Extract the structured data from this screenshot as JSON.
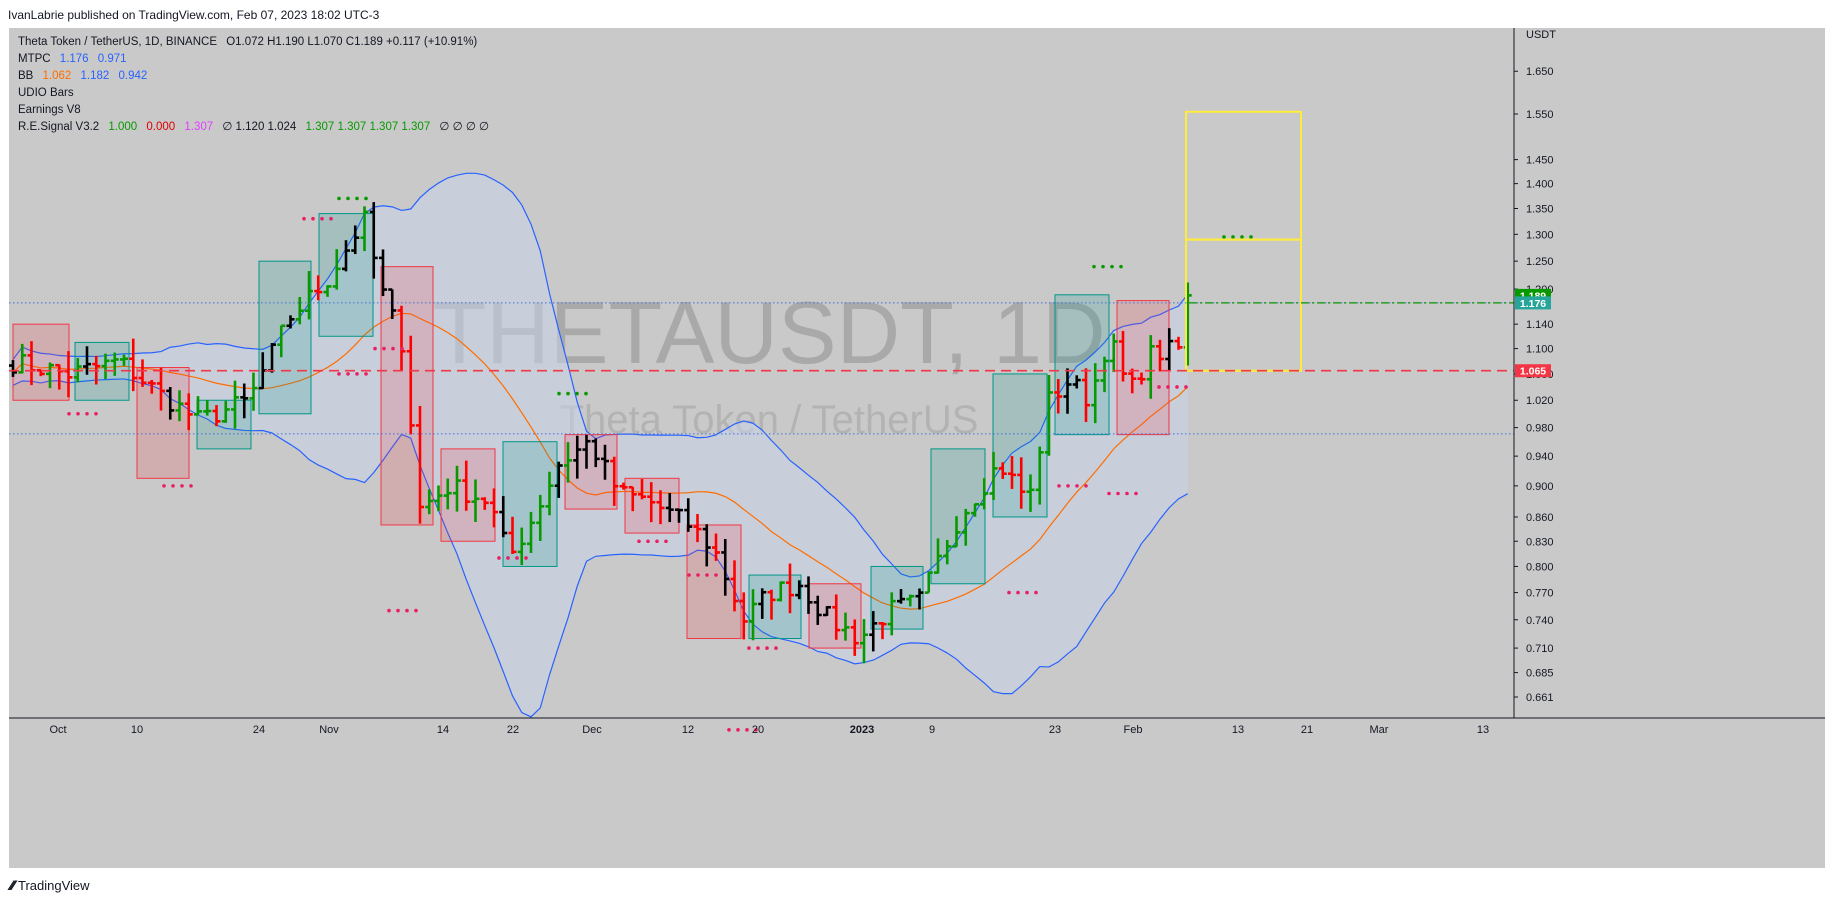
{
  "header": {
    "publish_text": "IvanLabrie published on TradingView.com, Feb 07, 2023 18:02 UTC-3"
  },
  "legend": {
    "symbol": "Theta Token / TetherUS, 1D, BINANCE",
    "ohlc": "O1.072  H1.190  L1.070  C1.189  +0.117 (+10.91%)",
    "mtpc": {
      "name": "MTPC",
      "v1": "1.176",
      "v2": "0.971"
    },
    "bb": {
      "name": "BB",
      "v1": "1.062",
      "v2": "1.182",
      "v3": "0.942"
    },
    "udio": "UDIO Bars",
    "earnings": "Earnings V8",
    "resignal": {
      "name": "R.E.Signal V3.2",
      "a": "1.000",
      "b": "0.000",
      "c": "1.307",
      "rest": "∅  1.120  1.024",
      "d": "1.307  1.307  1.307  1.307",
      "e": "∅  ∅  ∅  ∅"
    }
  },
  "watermark": {
    "main": "THETAUSDT, 1D",
    "sub": "Theta Token / TetherUS"
  },
  "footer": {
    "brand": "TradingView"
  },
  "chart_data": {
    "type": "bar",
    "y_axis": {
      "unit_label": "USDT",
      "scale": "log",
      "ylim": [
        0.64,
        1.75
      ],
      "ticks": [
        "1.650",
        "1.550",
        "1.450",
        "1.400",
        "1.350",
        "1.300",
        "1.250",
        "1.200",
        "1.140",
        "1.100",
        "1.060",
        "1.020",
        "0.980",
        "0.940",
        "0.900",
        "0.860",
        "0.830",
        "0.800",
        "0.770",
        "0.740",
        "0.710",
        "0.685",
        "0.661"
      ]
    },
    "x_axis": {
      "ticks": [
        "Oct",
        "10",
        "24",
        "Nov",
        "14",
        "22",
        "Dec",
        "12",
        "20",
        "2023",
        "9",
        "23",
        "Feb",
        "13",
        "21",
        "Mar",
        "13"
      ]
    },
    "price_labels": [
      {
        "text": "1.189",
        "value": 1.189,
        "color": "#089900"
      },
      {
        "text": "1.176",
        "value": 1.176,
        "color": "#26a69a"
      },
      {
        "text": "1.065",
        "value": 1.065,
        "color": "#f23645"
      }
    ],
    "colors": {
      "up": "#089900",
      "down": "#ff0000",
      "neutral": "#000000",
      "bb_band": "#2962ff",
      "bb_basis": "#ff6d00",
      "target": "#ffeb3b"
    }
  }
}
